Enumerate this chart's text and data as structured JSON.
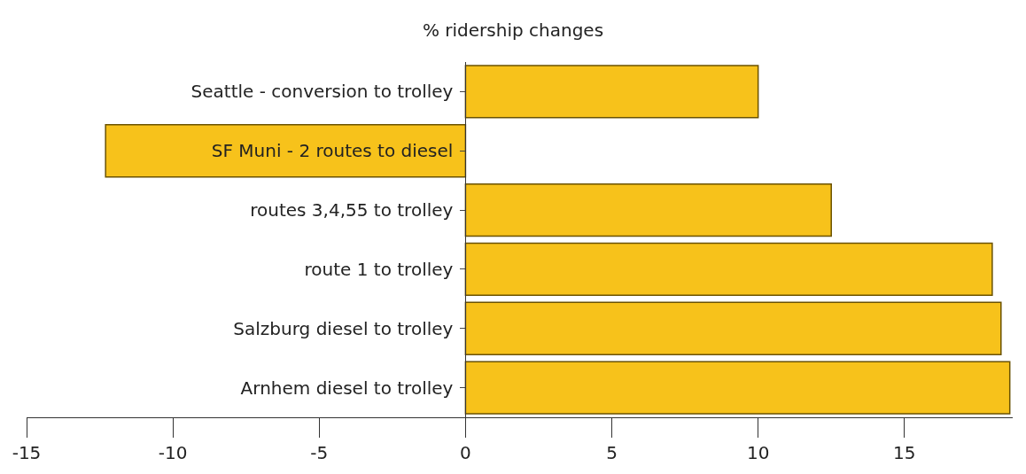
{
  "chart_data": {
    "type": "bar",
    "orientation": "horizontal",
    "title": "% ridership changes",
    "categories": [
      "Seattle - conversion to trolley",
      "SF Muni - 2 routes to diesel",
      "routes 3,4,55 to trolley",
      "route 1 to trolley",
      "Salzburg diesel to trolley",
      "Arnhem diesel to trolley"
    ],
    "values": [
      10,
      -12.3,
      12.5,
      18.0,
      18.3,
      18.6
    ],
    "color": "#f7c21b",
    "xlim": [
      -15,
      18.7
    ],
    "xticks": [
      -15,
      -10,
      -5,
      0,
      5,
      10,
      15
    ]
  }
}
